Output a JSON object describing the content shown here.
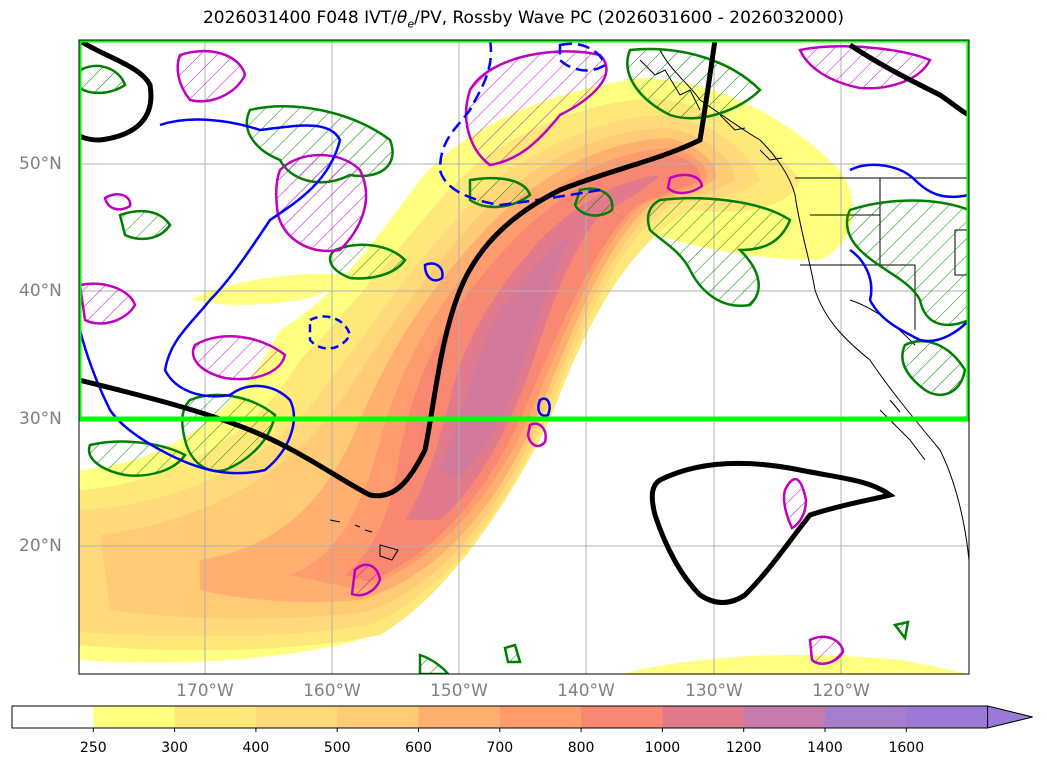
{
  "title": {
    "prefix": "2026031400 F048 IVT/",
    "theta_symbol": "θ",
    "theta_sub": "e",
    "suffix": "/PV, Rossby Wave PC (2026031600 - 2026032000)"
  },
  "map": {
    "projection": "PlateCarree",
    "lon_range": [
      -180,
      -110
    ],
    "lat_range": [
      10,
      60
    ],
    "grid": true,
    "lat_labels": [
      "50°N",
      "40°N",
      "30°N",
      "20°N"
    ],
    "lon_labels": [
      "170°W",
      "160°W",
      "150°W",
      "140°W",
      "130°W",
      "120°W"
    ],
    "highlight_box": {
      "lon_range": [
        -180,
        -110
      ],
      "lat_range": [
        30,
        60
      ],
      "color": "#00ff00"
    }
  },
  "colorbar": {
    "levels": [
      "250",
      "300",
      "400",
      "500",
      "600",
      "700",
      "800",
      "1000",
      "1200",
      "1400",
      "1600"
    ],
    "colors": [
      "#ffffff",
      "#ffff80",
      "#ffe87a",
      "#ffd97a",
      "#ffcc75",
      "#ffb070",
      "#ff9c6e",
      "#f88872",
      "#e07a8c",
      "#c47aaa",
      "#a67ccc",
      "#9a7ad6"
    ],
    "extend": "max"
  },
  "colors": {
    "contour_black": "#000000",
    "contour_blue": "#0000ff",
    "contour_green": "#008000",
    "contour_magenta": "#c000c0",
    "box_green": "#00ff00"
  }
}
